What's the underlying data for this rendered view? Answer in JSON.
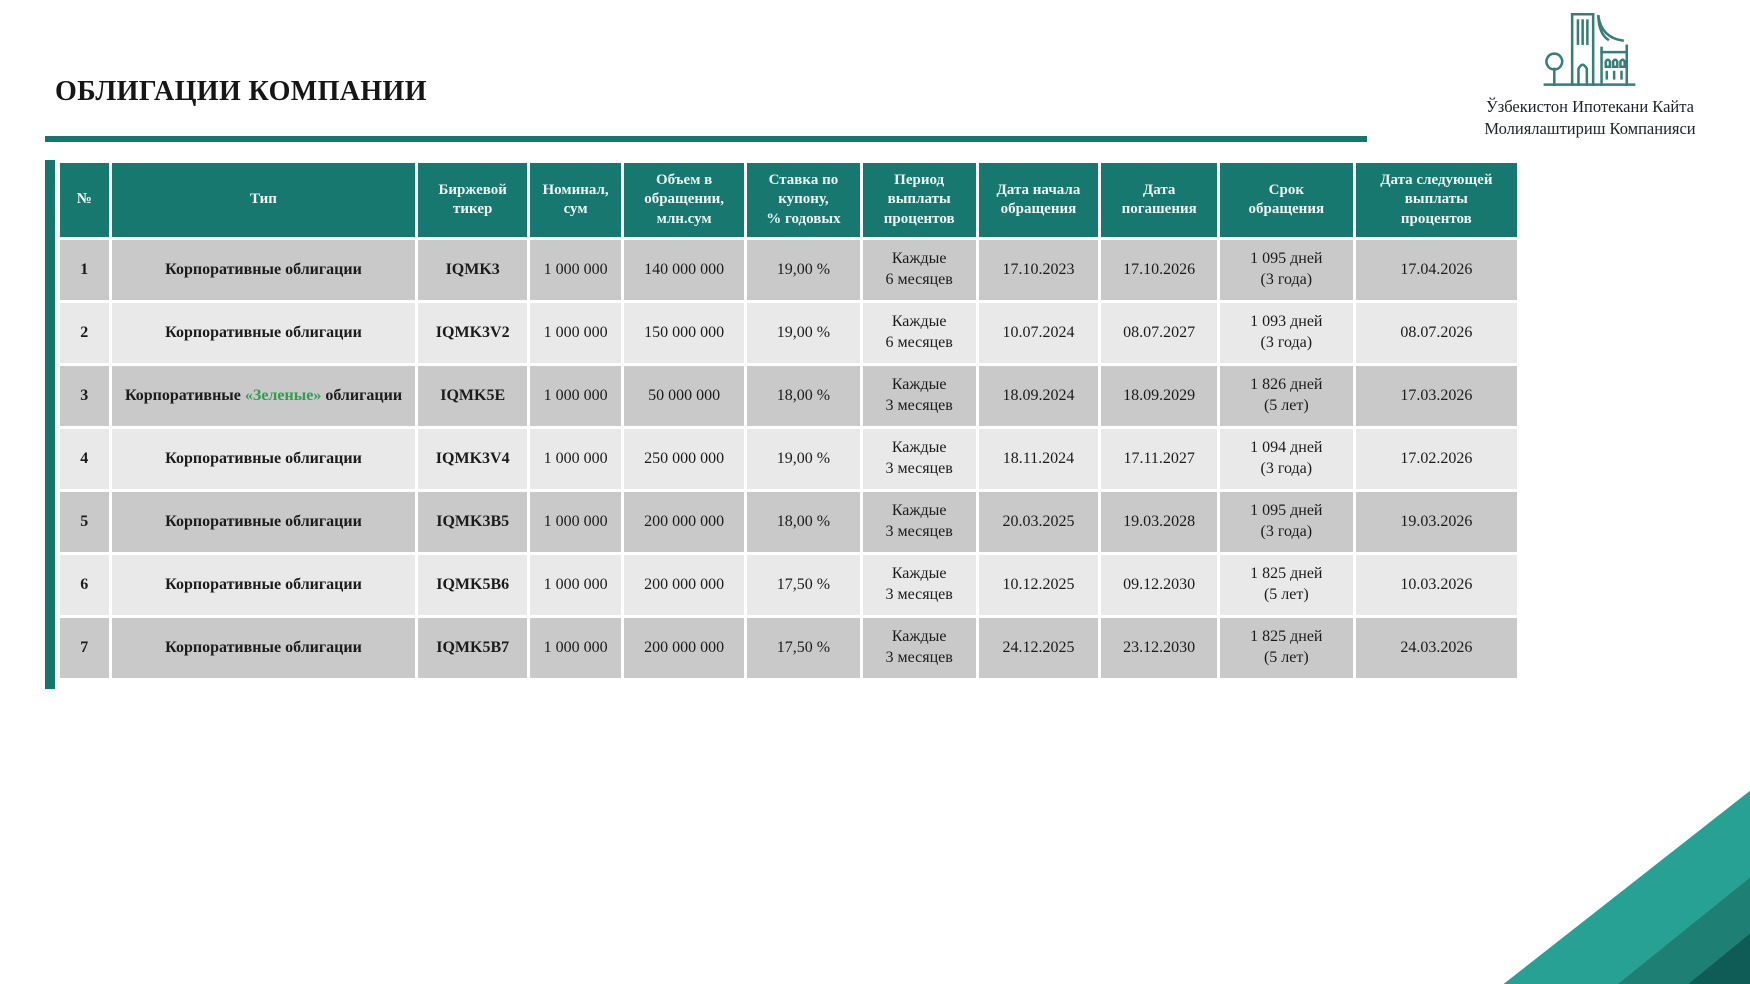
{
  "page": {
    "title": "ОБЛИГАЦИИ КОМПАНИИ",
    "logo": {
      "line1": "Ўзбекистон Ипотекани Кайта",
      "line2": "Молиялаштириш Компанияси"
    },
    "colors": {
      "accent_teal": "#16756c",
      "header_teal": "#17786f",
      "row_odd_gray": "#c9c9c9",
      "row_even_gray": "#e9e9e9",
      "green_bond_text": "#2ba14b",
      "logo_teal": "#357f76",
      "corner_band1": "#28a195",
      "corner_band2": "#1e8074",
      "corner_band3": "#0e5c55"
    }
  },
  "table": {
    "headers": [
      "№",
      "Тип",
      "Биржевой\nтикер",
      "Номинал,\nсум",
      "Объем в\nобращении,\nмлн.сум",
      "Ставка по\nкупону,\n% годовых",
      "Период\nвыплаты\nпроцентов",
      "Дата начала\nобращения",
      "Дата\nпогашения",
      "Срок\nобращения",
      "Дата следующей\nвыплаты\nпроцентов"
    ],
    "rows": [
      {
        "num": "1",
        "type_parts": [
          {
            "text": "Корпоративные облигации",
            "green": false
          }
        ],
        "ticker": "IQMK3",
        "nominal": "1 000 000",
        "volume": "140 000 000",
        "coupon_rate": "19,00 %",
        "payment_period": "Каждые\n6 месяцев",
        "start_date": "17.10.2023",
        "maturity_date": "17.10.2026",
        "term": "1 095  дней\n(3 года)",
        "next_payment_date": "17.04.2026"
      },
      {
        "num": "2",
        "type_parts": [
          {
            "text": "Корпоративные облигации",
            "green": false
          }
        ],
        "ticker": "IQMK3V2",
        "nominal": "1 000 000",
        "volume": "150 000 000",
        "coupon_rate": "19,00 %",
        "payment_period": "Каждые\n6 месяцев",
        "start_date": "10.07.2024",
        "maturity_date": "08.07.2027",
        "term": "1 093  дней\n(3 года)",
        "next_payment_date": "08.07.2026"
      },
      {
        "num": "3",
        "type_parts": [
          {
            "text": "Корпоративные ",
            "green": false
          },
          {
            "text": "«Зеленые»",
            "green": true
          },
          {
            "text": " облигации",
            "green": false
          }
        ],
        "ticker": "IQMK5E",
        "nominal": "1 000 000",
        "volume": "50 000 000",
        "coupon_rate": "18,00 %",
        "payment_period": "Каждые\n3 месяцев",
        "start_date": "18.09.2024",
        "maturity_date": "18.09.2029",
        "term": "1 826  дней\n(5 лет)",
        "next_payment_date": "17.03.2026"
      },
      {
        "num": "4",
        "type_parts": [
          {
            "text": "Корпоративные облигации",
            "green": false
          }
        ],
        "ticker": "IQMK3V4",
        "nominal": "1 000 000",
        "volume": "250 000 000",
        "coupon_rate": "19,00 %",
        "payment_period": "Каждые\n3 месяцев",
        "start_date": "18.11.2024",
        "maturity_date": "17.11.2027",
        "term": "1 094  дней\n(3 года)",
        "next_payment_date": "17.02.2026"
      },
      {
        "num": "5",
        "type_parts": [
          {
            "text": "Корпоративные облигации",
            "green": false
          }
        ],
        "ticker": "IQMK3B5",
        "nominal": "1 000 000",
        "volume": "200 000 000",
        "coupon_rate": "18,00 %",
        "payment_period": "Каждые\n3 месяцев",
        "start_date": "20.03.2025",
        "maturity_date": "19.03.2028",
        "term": "1 095  дней\n(3 года)",
        "next_payment_date": "19.03.2026"
      },
      {
        "num": "6",
        "type_parts": [
          {
            "text": "Корпоративные облигации",
            "green": false
          }
        ],
        "ticker": "IQMK5B6",
        "nominal": "1 000 000",
        "volume": "200 000 000",
        "coupon_rate": "17,50 %",
        "payment_period": "Каждые\n3 месяцев",
        "start_date": "10.12.2025",
        "maturity_date": "09.12.2030",
        "term": "1 825  дней\n(5 лет)",
        "next_payment_date": "10.03.2026"
      },
      {
        "num": "7",
        "type_parts": [
          {
            "text": "Корпоративные облигации",
            "green": false
          }
        ],
        "ticker": "IQMK5B7",
        "nominal": "1 000 000",
        "volume": "200 000 000",
        "coupon_rate": "17,50 %",
        "payment_period": "Каждые\n3 месяцев",
        "start_date": "24.12.2025",
        "maturity_date": "23.12.2030",
        "term": "1 825  дней\n(5 лет)",
        "next_payment_date": "24.03.2026"
      }
    ]
  }
}
